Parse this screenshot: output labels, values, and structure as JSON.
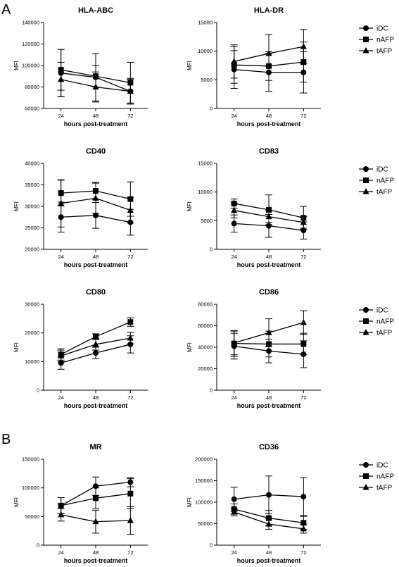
{
  "panel_labels": [
    "A",
    "B"
  ],
  "legend": {
    "entries": [
      {
        "name": "iDC",
        "marker": "circle"
      },
      {
        "name": "nAFP",
        "marker": "square"
      },
      {
        "name": "tAFP",
        "marker": "triangle"
      }
    ]
  },
  "chart_data": [
    {
      "type": "line",
      "title": "HLA-ABC",
      "xlabel": "hours post-treatment",
      "ylabel": "MFI",
      "x": [
        24,
        48,
        72
      ],
      "ylim": [
        60000,
        140000
      ],
      "yticks": [
        60000,
        80000,
        100000,
        120000,
        140000
      ],
      "yticklabels": [
        "60000",
        "80000",
        "100000",
        "120000",
        "140000"
      ],
      "series": [
        {
          "name": "iDC",
          "marker": "circle",
          "values": [
            93000,
            89000,
            76000
          ],
          "err": [
            22000,
            22000,
            12000
          ]
        },
        {
          "name": "nAFP",
          "marker": "square",
          "values": [
            96000,
            90000,
            84000
          ],
          "err": [
            19000,
            10000,
            19000
          ]
        },
        {
          "name": "tAFP",
          "marker": "triangle",
          "values": [
            87000,
            80000,
            76000
          ],
          "err": [
            16000,
            14000,
            11000
          ]
        }
      ]
    },
    {
      "type": "line",
      "title": "HLA-DR",
      "xlabel": "hours post-treatment",
      "ylabel": "MFI",
      "x": [
        24,
        48,
        72
      ],
      "ylim": [
        0,
        15000
      ],
      "yticks": [
        0,
        5000,
        10000,
        15000
      ],
      "yticklabels": [
        "0",
        "5000",
        "10000",
        "15000"
      ],
      "series": [
        {
          "name": "iDC",
          "marker": "circle",
          "values": [
            6800,
            6300,
            6300
          ],
          "err": [
            3300,
            3300,
            3600
          ]
        },
        {
          "name": "nAFP",
          "marker": "square",
          "values": [
            7600,
            7400,
            8100
          ],
          "err": [
            3200,
            2500,
            3500
          ]
        },
        {
          "name": "tAFP",
          "marker": "triangle",
          "values": [
            8200,
            9600,
            10800
          ],
          "err": [
            2900,
            3300,
            3000
          ]
        }
      ]
    },
    {
      "type": "line",
      "title": "CD40",
      "xlabel": "hours post-treatment",
      "ylabel": "MFI",
      "x": [
        24,
        48,
        72
      ],
      "ylim": [
        20000,
        40000
      ],
      "yticks": [
        20000,
        25000,
        30000,
        35000,
        40000
      ],
      "yticklabels": [
        "20000",
        "25000",
        "30000",
        "35000",
        "40000"
      ],
      "series": [
        {
          "name": "iDC",
          "marker": "circle",
          "values": [
            27500,
            27900,
            26300
          ],
          "err": [
            3500,
            3000,
            3000
          ]
        },
        {
          "name": "nAFP",
          "marker": "square",
          "values": [
            33100,
            33600,
            31700
          ],
          "err": [
            3000,
            2000,
            4000
          ]
        },
        {
          "name": "tAFP",
          "marker": "triangle",
          "values": [
            30700,
            31900,
            29100
          ],
          "err": [
            5500,
            3500,
            3000
          ]
        }
      ]
    },
    {
      "type": "line",
      "title": "CD83",
      "xlabel": "hours post-treatment",
      "ylabel": "MFI",
      "x": [
        24,
        48,
        72
      ],
      "ylim": [
        0,
        15000
      ],
      "yticks": [
        0,
        5000,
        10000,
        15000
      ],
      "yticklabels": [
        "0",
        "5000",
        "10000",
        "15000"
      ],
      "series": [
        {
          "name": "iDC",
          "marker": "circle",
          "values": [
            4500,
            4100,
            3300
          ],
          "err": [
            1500,
            2000,
            1500
          ]
        },
        {
          "name": "nAFP",
          "marker": "square",
          "values": [
            8000,
            6900,
            5500
          ],
          "err": [
            800,
            2600,
            2000
          ]
        },
        {
          "name": "tAFP",
          "marker": "triangle",
          "values": [
            6800,
            5700,
            4700
          ],
          "err": [
            1300,
            1000,
            1000
          ]
        }
      ]
    },
    {
      "type": "line",
      "title": "CD80",
      "xlabel": "hours post-treatment",
      "ylabel": "MFI",
      "x": [
        24,
        48,
        72
      ],
      "ylim": [
        0,
        30000
      ],
      "yticks": [
        0,
        10000,
        20000,
        30000
      ],
      "yticklabels": [
        "0",
        "10000",
        "20000",
        "30000"
      ],
      "series": [
        {
          "name": "iDC",
          "marker": "circle",
          "values": [
            9500,
            13000,
            16000
          ],
          "err": [
            2200,
            2000,
            3000
          ]
        },
        {
          "name": "nAFP",
          "marker": "square",
          "values": [
            12500,
            18700,
            23800
          ],
          "err": [
            2000,
            1000,
            1500
          ]
        },
        {
          "name": "tAFP",
          "marker": "triangle",
          "values": [
            12000,
            16000,
            18200
          ],
          "err": [
            2000,
            2000,
            2000
          ]
        }
      ]
    },
    {
      "type": "line",
      "title": "CD86",
      "xlabel": "hours post-treatment",
      "ylabel": "MFI",
      "x": [
        24,
        48,
        72
      ],
      "ylim": [
        0,
        80000
      ],
      "yticks": [
        0,
        20000,
        40000,
        60000,
        80000
      ],
      "yticklabels": [
        "0",
        "20000",
        "40000",
        "60000",
        "80000"
      ],
      "series": [
        {
          "name": "iDC",
          "marker": "circle",
          "values": [
            41000,
            36500,
            33500
          ],
          "err": [
            12000,
            11000,
            12500
          ]
        },
        {
          "name": "nAFP",
          "marker": "square",
          "values": [
            43500,
            43000,
            43000
          ],
          "err": [
            12000,
            12000,
            10000
          ]
        },
        {
          "name": "tAFP",
          "marker": "triangle",
          "values": [
            44000,
            53500,
            63000
          ],
          "err": [
            11000,
            13000,
            11000
          ]
        }
      ]
    },
    {
      "type": "line",
      "title": "MR",
      "xlabel": "hours post-treatment",
      "ylabel": "MFI",
      "x": [
        24,
        48,
        72
      ],
      "ylim": [
        0,
        150000
      ],
      "yticks": [
        0,
        50000,
        100000,
        150000
      ],
      "yticklabels": [
        "0",
        "50000",
        "100000",
        "150000"
      ],
      "series": [
        {
          "name": "iDC",
          "marker": "circle",
          "values": [
            69000,
            103000,
            110000
          ],
          "err": [
            14000,
            16000,
            8000
          ]
        },
        {
          "name": "nAFP",
          "marker": "square",
          "values": [
            69000,
            82000,
            90000
          ],
          "err": [
            14000,
            18000,
            26000
          ]
        },
        {
          "name": "tAFP",
          "marker": "triangle",
          "values": [
            53000,
            41000,
            43000
          ],
          "err": [
            11000,
            20000,
            24000
          ]
        }
      ]
    },
    {
      "type": "line",
      "title": "CD36",
      "xlabel": "hours post-treatment",
      "ylabel": "MFI",
      "x": [
        24,
        48,
        72
      ],
      "ylim": [
        0,
        200000
      ],
      "yticks": [
        0,
        50000,
        100000,
        150000,
        200000
      ],
      "yticklabels": [
        "0",
        "50000",
        "100000",
        "150000",
        "200000"
      ],
      "series": [
        {
          "name": "iDC",
          "marker": "circle",
          "values": [
            107000,
            117000,
            113000
          ],
          "err": [
            28000,
            44000,
            44000
          ]
        },
        {
          "name": "nAFP",
          "marker": "square",
          "values": [
            84000,
            63000,
            52000
          ],
          "err": [
            12000,
            18000,
            15000
          ]
        },
        {
          "name": "tAFP",
          "marker": "triangle",
          "values": [
            77000,
            49000,
            38000
          ],
          "err": [
            9000,
            12000,
            10000
          ]
        }
      ]
    }
  ]
}
